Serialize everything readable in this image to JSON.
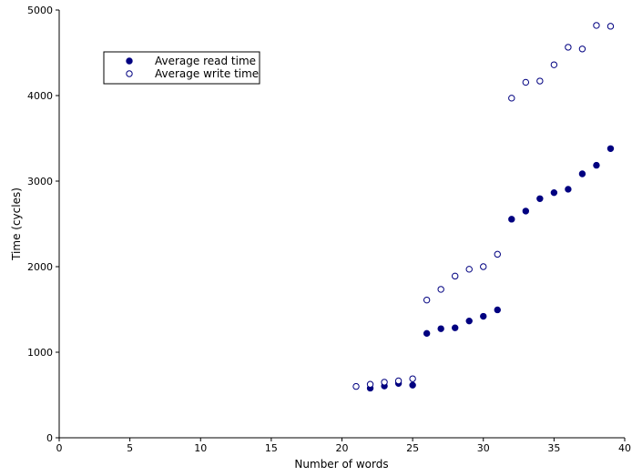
{
  "chart_data": {
    "type": "scatter",
    "xlabel": "Number of words",
    "ylabel": "Time (cycles)",
    "xlim": [
      0,
      40
    ],
    "ylim": [
      0,
      5000
    ],
    "xticks": [
      0,
      5,
      10,
      15,
      20,
      25,
      30,
      35,
      40
    ],
    "yticks": [
      0,
      1000,
      2000,
      3000,
      4000,
      5000
    ],
    "grid": false,
    "legend_position": "top-left",
    "series": [
      {
        "name": "Average read time",
        "marker": "filled-circle",
        "color": "#000080",
        "points": [
          [
            22,
            580
          ],
          [
            23,
            605
          ],
          [
            24,
            635
          ],
          [
            25,
            615
          ],
          [
            26,
            1220
          ],
          [
            27,
            1275
          ],
          [
            28,
            1285
          ],
          [
            29,
            1365
          ],
          [
            30,
            1420
          ],
          [
            31,
            1495
          ],
          [
            32,
            2555
          ],
          [
            33,
            2650
          ],
          [
            34,
            2795
          ],
          [
            35,
            2865
          ],
          [
            36,
            2905
          ],
          [
            37,
            3085
          ],
          [
            38,
            3185
          ],
          [
            39,
            3380
          ]
        ]
      },
      {
        "name": "Average write time",
        "marker": "open-circle",
        "color": "#000080",
        "points": [
          [
            21,
            600
          ],
          [
            22,
            625
          ],
          [
            23,
            650
          ],
          [
            24,
            665
          ],
          [
            25,
            690
          ],
          [
            26,
            1610
          ],
          [
            27,
            1735
          ],
          [
            28,
            1890
          ],
          [
            29,
            1970
          ],
          [
            30,
            2000
          ],
          [
            31,
            2145
          ],
          [
            32,
            3970
          ],
          [
            33,
            4155
          ],
          [
            34,
            4170
          ],
          [
            35,
            4360
          ],
          [
            36,
            4565
          ],
          [
            37,
            4545
          ],
          [
            38,
            4820
          ],
          [
            39,
            4810
          ]
        ]
      }
    ]
  }
}
